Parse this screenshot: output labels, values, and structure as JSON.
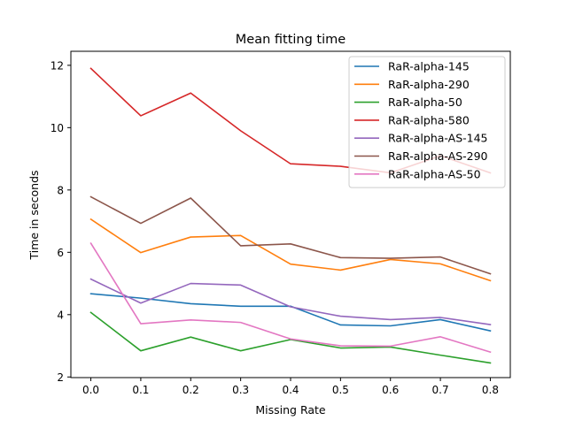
{
  "chart_data": {
    "type": "line",
    "title": "Mean fitting time",
    "xlabel": "Missing Rate",
    "ylabel": "Time in seconds",
    "x": [
      0.0,
      0.1,
      0.2,
      0.3,
      0.4,
      0.5,
      0.6,
      0.7,
      0.8
    ],
    "xlim": [
      -0.04,
      0.84
    ],
    "ylim": [
      1.98,
      12.45
    ],
    "xticks": [
      0.0,
      0.1,
      0.2,
      0.3,
      0.4,
      0.5,
      0.6,
      0.7,
      0.8
    ],
    "xtick_labels": [
      "0.0",
      "0.1",
      "0.2",
      "0.3",
      "0.4",
      "0.5",
      "0.6",
      "0.7",
      "0.8"
    ],
    "yticks": [
      2,
      4,
      6,
      8,
      10,
      12
    ],
    "ytick_labels": [
      "2",
      "4",
      "6",
      "8",
      "10",
      "12"
    ],
    "grid": false,
    "legend_position": "top-right",
    "series": [
      {
        "name": "RaR-alpha-145",
        "color": "#1f77b4",
        "values": [
          4.67,
          4.53,
          4.35,
          4.27,
          4.27,
          3.67,
          3.64,
          3.84,
          3.48
        ]
      },
      {
        "name": "RaR-alpha-290",
        "color": "#ff7f0e",
        "values": [
          7.06,
          5.99,
          6.49,
          6.54,
          5.62,
          5.43,
          5.77,
          5.63,
          5.09
        ]
      },
      {
        "name": "RaR-alpha-50",
        "color": "#2ca02c",
        "values": [
          4.07,
          2.84,
          3.28,
          2.84,
          3.2,
          2.93,
          2.96,
          2.7,
          2.45
        ]
      },
      {
        "name": "RaR-alpha-580",
        "color": "#d62728",
        "values": [
          11.9,
          10.38,
          11.11,
          9.9,
          8.84,
          8.76,
          8.55,
          9.1,
          8.55
        ]
      },
      {
        "name": "RaR-alpha-AS-145",
        "color": "#9467bd",
        "values": [
          5.14,
          4.37,
          5.0,
          4.95,
          4.25,
          3.95,
          3.84,
          3.91,
          3.68
        ]
      },
      {
        "name": "RaR-alpha-AS-290",
        "color": "#8c564b",
        "values": [
          7.78,
          6.93,
          7.74,
          6.21,
          6.27,
          5.83,
          5.81,
          5.85,
          5.31
        ]
      },
      {
        "name": "RaR-alpha-AS-50",
        "color": "#e377c2",
        "values": [
          6.29,
          3.71,
          3.83,
          3.75,
          3.22,
          3.0,
          2.99,
          3.29,
          2.8
        ]
      }
    ]
  }
}
